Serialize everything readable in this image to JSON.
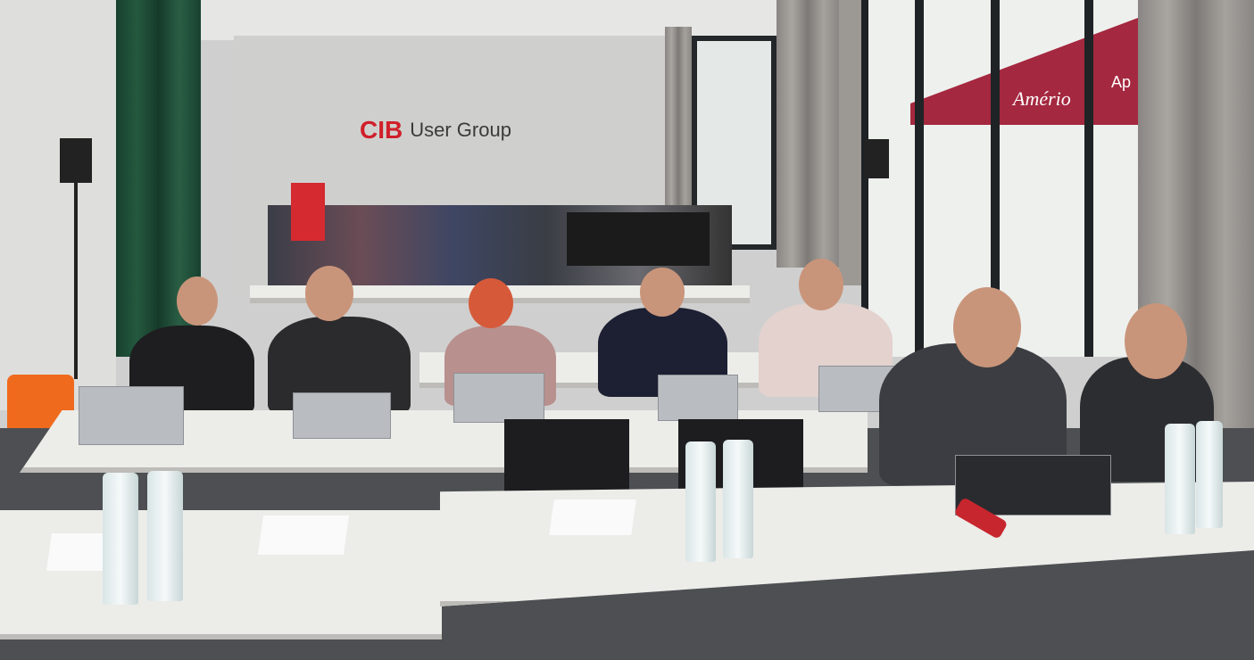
{
  "scene": "conference room with attendees at laptops",
  "wall_logo": {
    "brand": "CIB",
    "text": "User Group",
    "brand_color": "#d01f2a"
  },
  "awning": {
    "text": "Amério",
    "partial_text": "Ap",
    "color": "#a4283f"
  },
  "colors": {
    "curtain_green": "#24593f",
    "table": "#ecece9",
    "floor": "#4d4f52"
  }
}
